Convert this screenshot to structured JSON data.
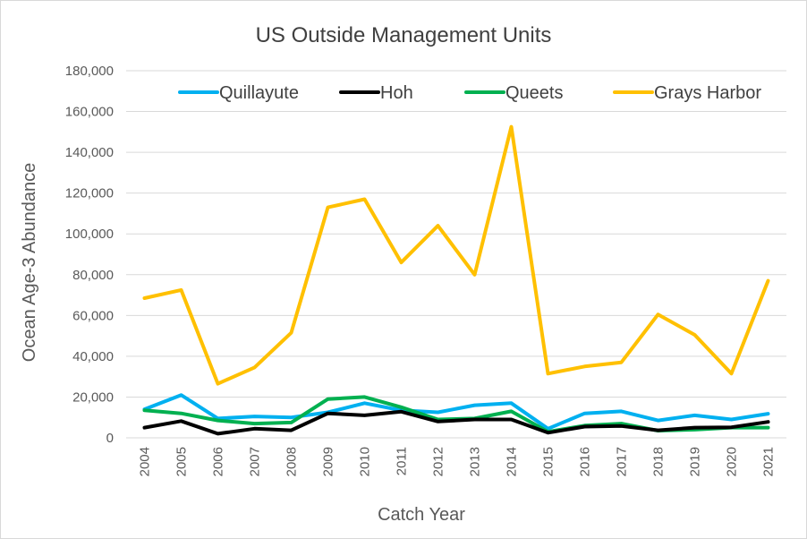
{
  "chart_data": {
    "type": "line",
    "title": "US Outside Management Units",
    "xlabel": "Catch Year",
    "ylabel": "Ocean Age-3 Abundance",
    "ylim": [
      0,
      180000
    ],
    "y_ticks": [
      0,
      20000,
      40000,
      60000,
      80000,
      100000,
      120000,
      140000,
      160000,
      180000
    ],
    "y_tick_labels": [
      "0",
      "20,000",
      "40,000",
      "60,000",
      "80,000",
      "100,000",
      "120,000",
      "140,000",
      "160,000",
      "180,000"
    ],
    "grid": "horizontal",
    "legend_position": "top",
    "categories": [
      "2004",
      "2005",
      "2006",
      "2007",
      "2008",
      "2009",
      "2010",
      "2011",
      "2012",
      "2013",
      "2014",
      "2015",
      "2016",
      "2017",
      "2018",
      "2019",
      "2020",
      "2021"
    ],
    "series": [
      {
        "name": "Quillayute",
        "color": "#00B0F0",
        "values": [
          14000,
          21000,
          9500,
          10500,
          10000,
          12500,
          17000,
          13500,
          12500,
          16000,
          17000,
          4500,
          12000,
          13000,
          8500,
          11000,
          9000,
          11800
        ]
      },
      {
        "name": "Hoh",
        "color": "#000000",
        "values": [
          5000,
          8200,
          2000,
          4500,
          3700,
          12000,
          11000,
          12800,
          8000,
          9000,
          9000,
          2500,
          5500,
          5800,
          3700,
          5000,
          5200,
          7800
        ]
      },
      {
        "name": "Queets",
        "color": "#00B050",
        "values": [
          13500,
          12000,
          8500,
          7000,
          7500,
          19000,
          20000,
          15000,
          9000,
          9500,
          13000,
          3000,
          6000,
          7000,
          3500,
          4000,
          5000,
          5000
        ]
      },
      {
        "name": "Grays Harbor",
        "color": "#FFC000",
        "values": [
          68500,
          72500,
          26500,
          34500,
          51500,
          113000,
          117000,
          86000,
          104000,
          80000,
          152500,
          31500,
          35000,
          37000,
          60500,
          50500,
          31500,
          77000
        ]
      }
    ]
  }
}
